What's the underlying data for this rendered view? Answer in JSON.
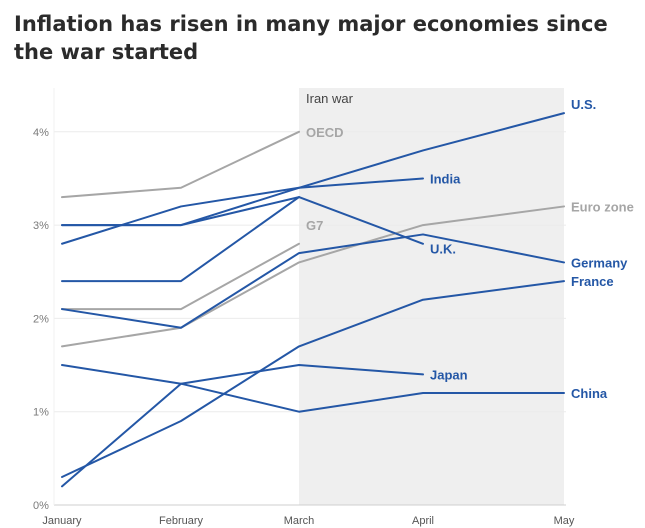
{
  "title": "Inflation has risen in many major economies since the war started",
  "chart_data": {
    "type": "line",
    "categories": [
      "January",
      "February",
      "March",
      "April",
      "May"
    ],
    "ylim": [
      0,
      4.5
    ],
    "yticks": [
      0,
      1,
      2,
      3,
      4
    ],
    "ytick_labels": [
      "0%",
      "1%",
      "2%",
      "3%",
      "4%"
    ],
    "grid": true,
    "band": {
      "from": "March",
      "to": "May",
      "label": "Iran war",
      "color": "#efefef"
    },
    "colors": {
      "blue": "#2457a6",
      "gray": "#a6a6a6"
    },
    "series": [
      {
        "name": "OECD",
        "group": "gray",
        "values": [
          3.3,
          3.4,
          4.0,
          null,
          null
        ]
      },
      {
        "name": "Euro zone",
        "group": "gray",
        "values": [
          1.7,
          1.9,
          2.6,
          3.0,
          3.2
        ]
      },
      {
        "name": "G7",
        "group": "gray",
        "values": [
          2.1,
          2.1,
          2.8,
          null,
          null
        ]
      },
      {
        "name": "U.S.",
        "group": "blue",
        "values": [
          2.8,
          3.2,
          3.4,
          3.8,
          4.2
        ]
      },
      {
        "name": "India",
        "group": "blue",
        "values": [
          3.0,
          3.0,
          3.4,
          3.5,
          null
        ]
      },
      {
        "name": "U.K.",
        "group": "blue",
        "values": [
          3.0,
          3.0,
          3.3,
          2.8,
          null
        ]
      },
      {
        "name": "Germany",
        "group": "blue",
        "values": [
          2.1,
          1.9,
          2.7,
          2.9,
          2.6
        ]
      },
      {
        "name": "France",
        "group": "blue",
        "values": [
          0.2,
          1.3,
          1.5,
          1.4,
          null
        ]
      },
      {
        "name": "Japan",
        "group": "blue",
        "values": [
          0.3,
          0.9,
          1.7,
          2.2,
          2.4
        ]
      },
      {
        "name": "China",
        "group": "blue",
        "values": [
          1.5,
          1.3,
          1.0,
          1.2,
          1.2
        ]
      },
      {
        "name": "",
        "group": "blue",
        "values": [
          2.4,
          2.4,
          3.3,
          null,
          null
        ]
      }
    ],
    "labels": [
      {
        "text": "OECD",
        "group": "gray",
        "at": [
          "March",
          4.0
        ]
      },
      {
        "text": "G7",
        "group": "gray",
        "at": [
          "March",
          3.0
        ]
      },
      {
        "text": "Euro zone",
        "group": "gray",
        "at": [
          "May",
          3.2
        ]
      },
      {
        "text": "U.S.",
        "group": "blue",
        "at": [
          "May",
          4.3
        ]
      },
      {
        "text": "India",
        "group": "blue",
        "at": [
          "April",
          3.5
        ]
      },
      {
        "text": "U.K.",
        "group": "blue",
        "at": [
          "April",
          2.75
        ]
      },
      {
        "text": "Germany",
        "group": "blue",
        "at": [
          "May",
          2.6
        ]
      },
      {
        "text": "France",
        "group": "blue",
        "at": [
          "May",
          2.4
        ]
      },
      {
        "text": "Japan",
        "group": "blue",
        "at": [
          "April",
          1.4
        ]
      },
      {
        "text": "China",
        "group": "blue",
        "at": [
          "May",
          1.2
        ]
      }
    ]
  }
}
